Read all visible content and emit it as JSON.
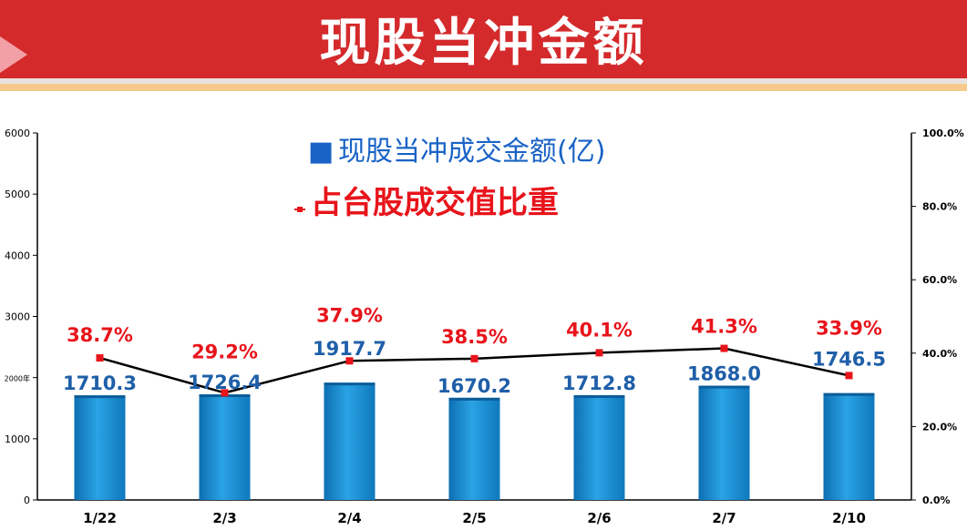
{
  "header": {
    "title": "现股当冲金额"
  },
  "colors": {
    "banner": "#d42a2c",
    "bar": "#1a8fd0",
    "line": "#000000",
    "marker": "#e8141b",
    "value_label": "#1f5fa8",
    "pct_label": "#e8141b",
    "legend_blue": "#1a63c6"
  },
  "chart_data": {
    "type": "bar",
    "categories": [
      "1/22",
      "2/3",
      "2/4",
      "2/5",
      "2/6",
      "2/7",
      "2/10"
    ],
    "series": [
      {
        "name": "现股当冲成交金额(亿)",
        "type": "bar",
        "axis": "left",
        "values": [
          1710.3,
          1726.4,
          1917.7,
          1670.2,
          1712.8,
          1868.0,
          1746.5
        ],
        "labels": [
          "1710.3",
          "1726.4",
          "1917.7",
          "1670.2",
          "1712.8",
          "1868.0",
          "1746.5"
        ]
      },
      {
        "name": "占台股成交值比重",
        "type": "line",
        "axis": "right",
        "values": [
          38.7,
          29.2,
          37.9,
          38.5,
          40.1,
          41.3,
          33.9
        ],
        "labels": [
          "38.7%",
          "29.2%",
          "37.9%",
          "38.5%",
          "40.1%",
          "41.3%",
          "33.9%"
        ]
      }
    ],
    "left_axis": {
      "ylim": [
        0,
        6000
      ],
      "ticks": [
        "0",
        "1000",
        "2000年",
        "3000",
        "4000",
        "5000",
        "6000"
      ]
    },
    "right_axis": {
      "ylim": [
        0,
        100
      ],
      "ticks": [
        "0.0%",
        "20.0%",
        "40.0%",
        "60.0%",
        "80.0%",
        "100.0%"
      ]
    },
    "legend": {
      "bar_symbol": "■",
      "bar_label": "现股当冲成交金额(亿)",
      "line_label": "占台股成交值比重"
    },
    "grid": false
  }
}
